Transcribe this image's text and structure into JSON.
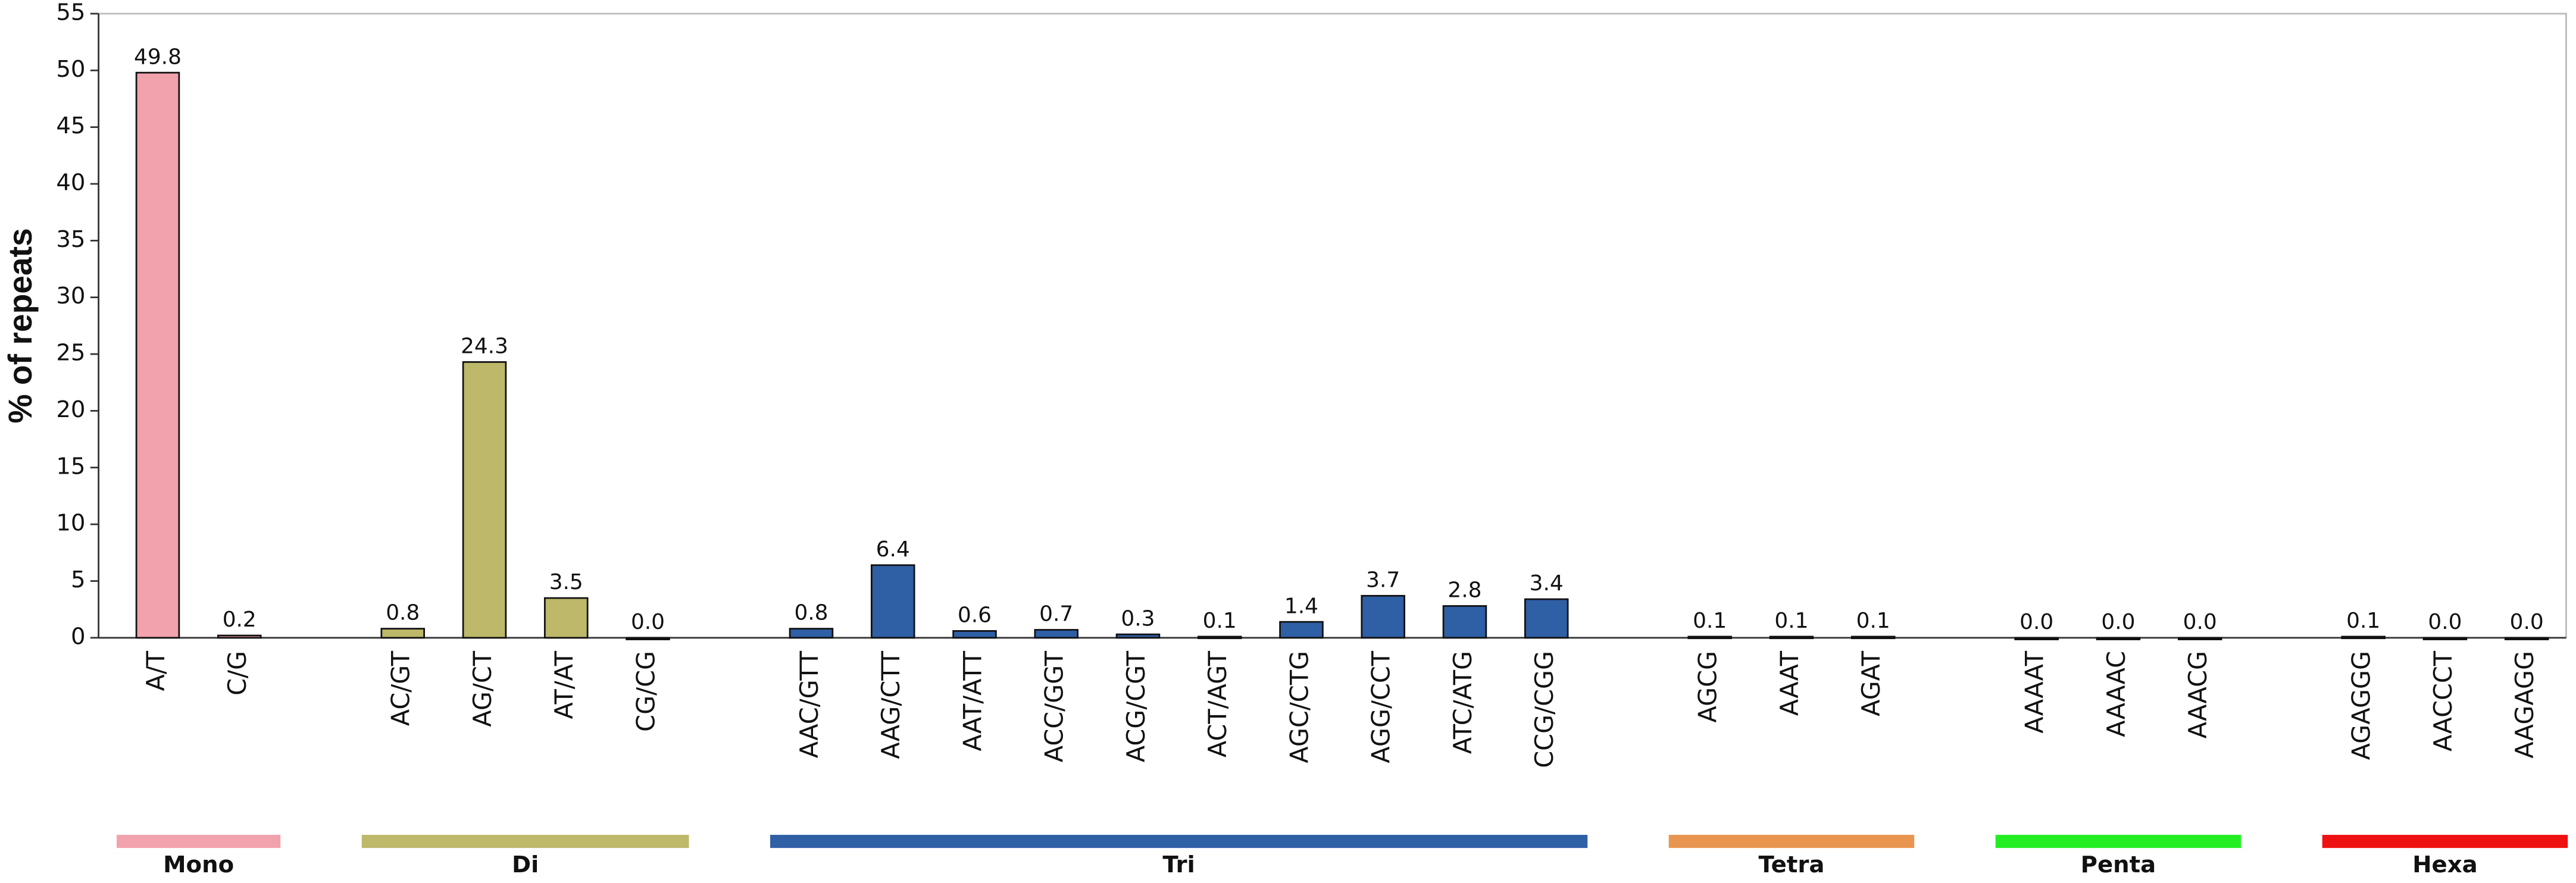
{
  "chart_data": {
    "type": "bar",
    "ylabel": "% of repeats",
    "ylim": [
      0,
      55
    ],
    "yticks": [
      0,
      5,
      10,
      15,
      20,
      25,
      30,
      35,
      40,
      45,
      50,
      55
    ],
    "groups": [
      {
        "name": "Mono",
        "color": "#f2a2ac",
        "categories": [
          "A/T",
          "C/G"
        ],
        "values": [
          49.8,
          0.2
        ],
        "value_labels": [
          "49.8",
          "0.2"
        ]
      },
      {
        "name": "Di",
        "color": "#bdb86a",
        "categories": [
          "AC/GT",
          "AG/CT",
          "AT/AT",
          "CG/CG"
        ],
        "values": [
          0.8,
          24.3,
          3.5,
          0
        ],
        "value_labels": [
          "0.8",
          "24.3",
          "3.5",
          "0.0"
        ]
      },
      {
        "name": "Tri",
        "color": "#2f5fa5",
        "categories": [
          "AAC/GTT",
          "AAG/CTT",
          "AAT/ATT",
          "ACC/GGT",
          "ACG/CGT",
          "ACT/AGT",
          "AGC/CTG",
          "AGG/CCT",
          "ATC/ATG",
          "CCG/CGG"
        ],
        "values": [
          0.8,
          6.4,
          0.6,
          0.7,
          0.3,
          0.1,
          1.4,
          3.7,
          2.8,
          3.4
        ],
        "value_labels": [
          "0.8",
          "6.4",
          "0.6",
          "0.7",
          "0.3",
          "0.1",
          "1.4",
          "3.7",
          "2.8",
          "3.4"
        ]
      },
      {
        "name": "Tetra",
        "color": "#e8964f",
        "categories": [
          "AGCG",
          "AAAT",
          "AGAT"
        ],
        "values": [
          0.1,
          0.1,
          0.1
        ],
        "value_labels": [
          "0.1",
          "0.1",
          "0.1"
        ]
      },
      {
        "name": "Penta",
        "color": "#22ee22",
        "categories": [
          "AAAAT",
          "AAAAC",
          "AAACG"
        ],
        "values": [
          0,
          0,
          0
        ],
        "value_labels": [
          "0.0",
          "0.0",
          "0.0"
        ]
      },
      {
        "name": "Hexa",
        "color": "#ee1111",
        "categories": [
          "AGAGGG",
          "AACCCT",
          "AAGAGG"
        ],
        "values": [
          0.1,
          0,
          0
        ],
        "value_labels": [
          "0.1",
          "0.0",
          "0.0"
        ]
      }
    ]
  }
}
